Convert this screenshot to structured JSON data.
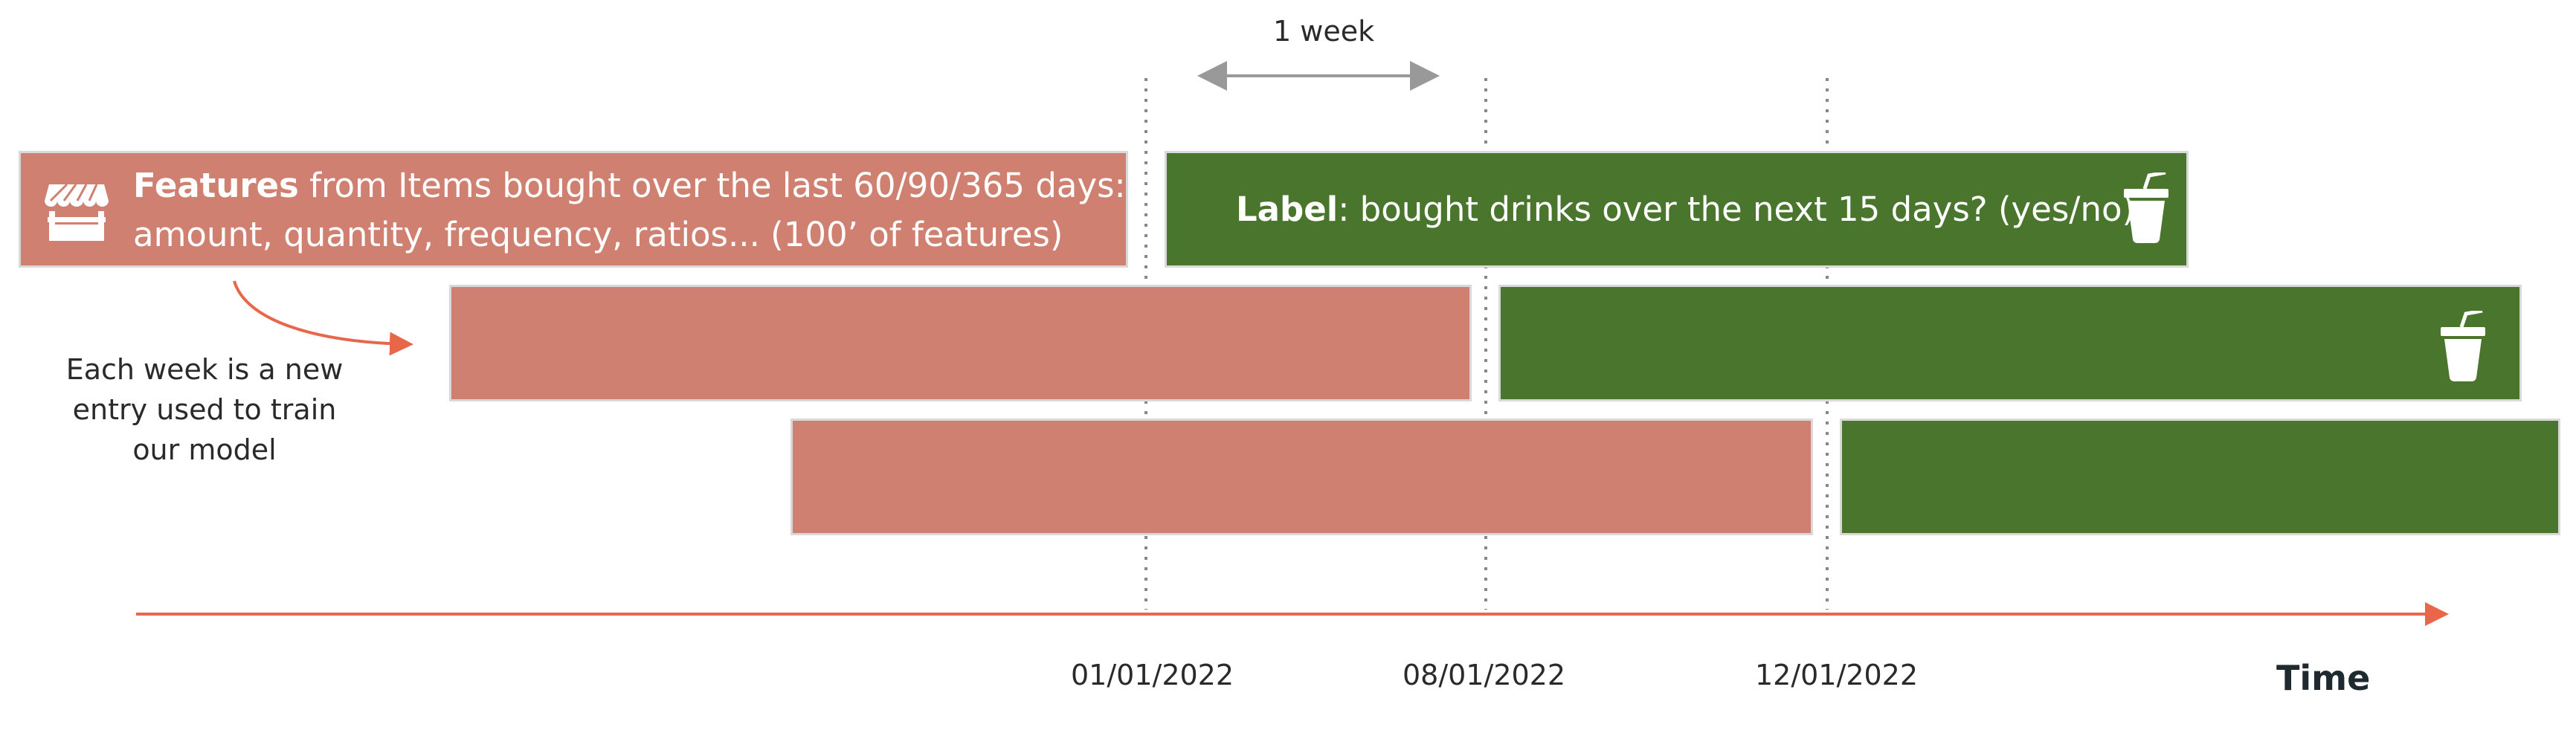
{
  "timeline": {
    "week_span_label": "1 week",
    "time_label": "Time",
    "dates": [
      "01/01/2022",
      "08/01/2022",
      "12/01/2022"
    ]
  },
  "features_box": {
    "title": "Features",
    "line1_rest": " from Items bought over the last 60/90/365 days:",
    "line2": "amount, quantity, frequency, ratios... (100’ of features)",
    "icon": "store-icon"
  },
  "label_box": {
    "title": "Label",
    "text_rest": ": bought drinks over the next 15 days? (yes/no)",
    "icon": "drink-cup-icon"
  },
  "annotation": {
    "lines": [
      "Each week is a new",
      "entry used to train",
      "our model"
    ]
  },
  "colors": {
    "features": "#d08070",
    "label": "#4a752d",
    "axis": "#e8664a",
    "guide": "#888888"
  }
}
